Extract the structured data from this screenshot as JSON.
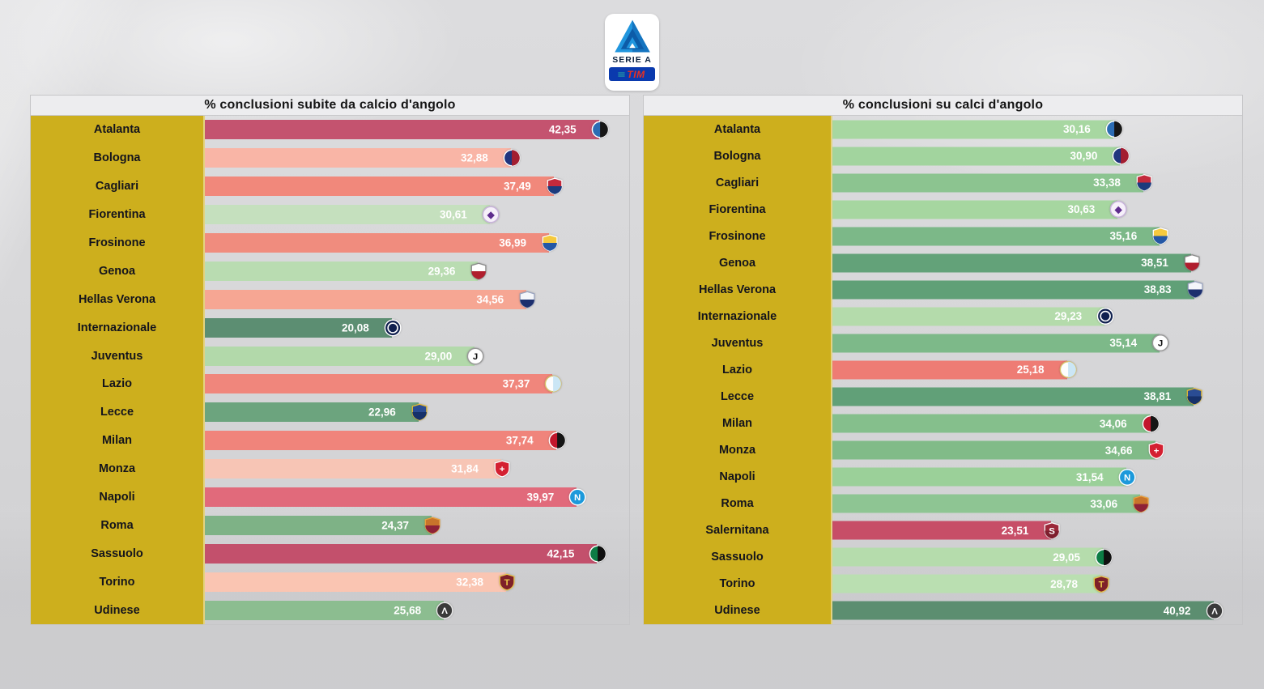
{
  "page": {
    "background": "#d7d7d9"
  },
  "logo": {
    "serie_a_label": "SERIE A",
    "tim_label": "TIM",
    "tim_bars_glyph": "≡",
    "card_color": "#ffffff",
    "triangle_blue": "#2196de",
    "triangle_dark_blue": "#0d5ca8",
    "wordmark_navy": "#0b2240",
    "tim_bar_blue": "#0a3aae",
    "tim_red": "#e63022",
    "tim_teal": "#2bb5a3"
  },
  "layout_colors": {
    "label_column_gold": "#cdaf1d",
    "panel_header_bg": "#ededef",
    "panel_border": "#c6c6c8",
    "value_text": "#ffffff",
    "team_text": "#14141c"
  },
  "chart_data": [
    {
      "type": "bar",
      "orientation": "horizontal",
      "title": "% conclusioni subite da calcio d'angolo",
      "xlim": [
        0,
        45.6
      ],
      "grid": false,
      "legend": "none",
      "categories": [
        "Atalanta",
        "Bologna",
        "Cagliari",
        "Fiorentina",
        "Frosinone",
        "Genoa",
        "Hellas Verona",
        "Internazionale",
        "Juventus",
        "Lazio",
        "Lecce",
        "Milan",
        "Monza",
        "Napoli",
        "Roma",
        "Sassuolo",
        "Torino",
        "Udinese"
      ],
      "values": [
        42.35,
        32.88,
        37.49,
        30.61,
        36.99,
        29.36,
        34.56,
        20.08,
        29.0,
        37.37,
        22.96,
        37.74,
        31.84,
        39.97,
        24.37,
        42.15,
        32.38,
        25.68
      ],
      "value_labels": [
        "42,35",
        "32,88",
        "37,49",
        "30,61",
        "36,99",
        "29,36",
        "34,56",
        "20,08",
        "29,00",
        "37,37",
        "22,96",
        "37,74",
        "31,84",
        "39,97",
        "24,37",
        "42,15",
        "32,38",
        "25,68"
      ],
      "bar_colors": [
        "#c4536f",
        "#f9b5a6",
        "#f1887b",
        "#c5e0be",
        "#f08c7e",
        "#b9dcb1",
        "#f6a693",
        "#5c8e72",
        "#b2d9aa",
        "#f0867c",
        "#6ca47e",
        "#f0847b",
        "#f7c5b5",
        "#e16a7b",
        "#7eb286",
        "#c3506c",
        "#fac5b2",
        "#8cbd90"
      ]
    },
    {
      "type": "bar",
      "orientation": "horizontal",
      "title": "% conclusioni su calci d'angolo",
      "xlim": [
        0,
        44.0
      ],
      "grid": false,
      "legend": "none",
      "categories": [
        "Atalanta",
        "Bologna",
        "Cagliari",
        "Fiorentina",
        "Frosinone",
        "Genoa",
        "Hellas Verona",
        "Internazionale",
        "Juventus",
        "Lazio",
        "Lecce",
        "Milan",
        "Monza",
        "Napoli",
        "Roma",
        "Salernitana",
        "Sassuolo",
        "Torino",
        "Udinese"
      ],
      "values": [
        30.16,
        30.9,
        33.38,
        30.63,
        35.16,
        38.51,
        38.83,
        29.23,
        35.14,
        25.18,
        38.81,
        34.06,
        34.66,
        31.54,
        33.06,
        23.51,
        29.05,
        28.78,
        40.92
      ],
      "value_labels": [
        "30,16",
        "30,90",
        "33,38",
        "30,63",
        "35,16",
        "38,51",
        "38,83",
        "29,23",
        "35,14",
        "25,18",
        "38,81",
        "34,06",
        "34,66",
        "31,54",
        "33,06",
        "23,51",
        "29,05",
        "28,78",
        "40,92"
      ],
      "bar_colors": [
        "#a7d7a1",
        "#a2d49e",
        "#8cc490",
        "#a6d6a0",
        "#7cb888",
        "#63a279",
        "#60a077",
        "#b4dbab",
        "#7db989",
        "#ee7c74",
        "#61a078",
        "#85bf8c",
        "#81bb88",
        "#9bd099",
        "#8ec593",
        "#c74e67",
        "#b5dcac",
        "#badfb1",
        "#5c8e70"
      ]
    }
  ],
  "crests": {
    "Atalanta": {
      "shape": "circle",
      "c1": "#2b6cb3",
      "c2": "#161616",
      "border": "#ffffff"
    },
    "Bologna": {
      "shape": "circle",
      "c1": "#20357e",
      "c2": "#a31e31",
      "border": "#ffffff"
    },
    "Cagliari": {
      "shape": "shield",
      "c1": "#c32a3c",
      "c2": "#1c3b7d",
      "border": "#ffffff"
    },
    "Fiorentina": {
      "shape": "circle",
      "c1": "#f6f0fa",
      "c2": "#f6f0fa",
      "letter": "◆",
      "fg": "#5f2d8e",
      "border": "#c9b3dc"
    },
    "Frosinone": {
      "shape": "shield",
      "c1": "#f5c93e",
      "c2": "#2457a5",
      "border": "#ffffff"
    },
    "Genoa": {
      "shape": "shield",
      "c1": "#ffffff",
      "c2": "#b01e2e",
      "border": "#8a8a8a"
    },
    "Hellas Verona": {
      "shape": "shield",
      "c1": "#f4f6fa",
      "c2": "#1c2f6e",
      "border": "#9aa4c0"
    },
    "Internazionale": {
      "shape": "circle",
      "c1": "#10204f",
      "c2": "#10204f",
      "ring": true,
      "border": "#ffffff"
    },
    "Juventus": {
      "shape": "circle",
      "c1": "#ffffff",
      "c2": "#ffffff",
      "letter": "J",
      "fg": "#111111",
      "border": "#999999"
    },
    "Lazio": {
      "shape": "circle",
      "c1": "#fdfdfd",
      "c2": "#cbe6f5",
      "border": "#d8c06a"
    },
    "Lecce": {
      "shape": "shield",
      "c1": "#2a4c93",
      "c2": "#16316a",
      "border": "#e8bc33"
    },
    "Milan": {
      "shape": "circle",
      "c1": "#c2172c",
      "c2": "#151515",
      "border": "#ffffff"
    },
    "Monza": {
      "shape": "shield",
      "c1": "#d42031",
      "c2": "#d42031",
      "letter": "+",
      "fg": "#ffffff",
      "border": "#ffffff"
    },
    "Napoli": {
      "shape": "circle",
      "c1": "#1c99db",
      "c2": "#1c99db",
      "letter": "N",
      "fg": "#ffffff",
      "border": "#ffffff"
    },
    "Roma": {
      "shape": "shield",
      "c1": "#c8742b",
      "c2": "#8e2237",
      "border": "#e9a13b"
    },
    "Salernitana": {
      "shape": "shield",
      "c1": "#9b2839",
      "c2": "#7e1f2e",
      "letter": "S",
      "fg": "#ffffff",
      "border": "#ffffff"
    },
    "Sassuolo": {
      "shape": "circle",
      "c1": "#0c7c45",
      "c2": "#101010",
      "border": "#ffffff"
    },
    "Torino": {
      "shape": "shield",
      "c1": "#7e2029",
      "c2": "#7e2029",
      "letter": "T",
      "fg": "#e8c54a",
      "border": "#e8c54a"
    },
    "Udinese": {
      "shape": "circle",
      "c1": "#3a3a3a",
      "c2": "#3a3a3a",
      "letter": "Λ",
      "fg": "#ffffff",
      "border": "#e6e6e6"
    }
  }
}
